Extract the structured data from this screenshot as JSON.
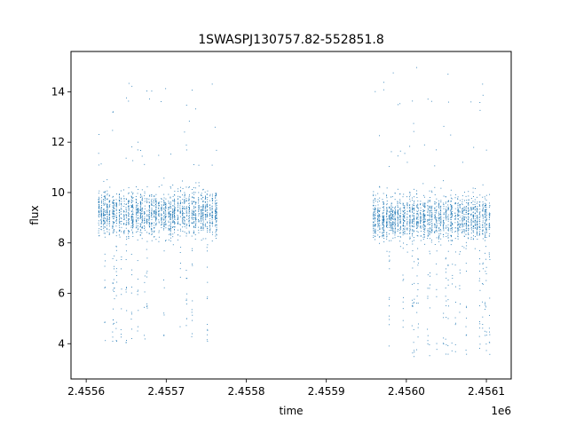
{
  "chart_data": {
    "type": "scatter",
    "title": "1SWASPJ130757.82-552851.8",
    "xlabel": "time",
    "ylabel": "flux",
    "x_offset_label": "1e6",
    "xlim": [
      2455581,
      2456131
    ],
    "ylim": [
      2.6,
      15.6
    ],
    "x_ticks": [
      2455600,
      2455700,
      2455800,
      2455900,
      2456000,
      2456100
    ],
    "x_tick_labels": [
      "2.4556",
      "2.4557",
      "2.4558",
      "2.4559",
      "2.4560",
      "2.4561"
    ],
    "y_ticks": [
      4,
      6,
      8,
      10,
      12,
      14
    ],
    "y_tick_labels": [
      "4",
      "6",
      "8",
      "10",
      "12",
      "14"
    ],
    "grid": false,
    "marker_color": "#1f77b4",
    "observing_seasons": [
      {
        "x_start": 2455614,
        "x_end": 2455765,
        "flux_center": 9.2,
        "flux_spread_low": 8.0,
        "flux_spread_high": 10.8,
        "outlier_min": 3.7,
        "outlier_max": 14.4
      },
      {
        "x_start": 2455957,
        "x_end": 2456105,
        "flux_center": 9.0,
        "flux_spread_low": 7.8,
        "flux_spread_high": 11.0,
        "outlier_min": 3.2,
        "outlier_max": 15.0
      }
    ]
  }
}
